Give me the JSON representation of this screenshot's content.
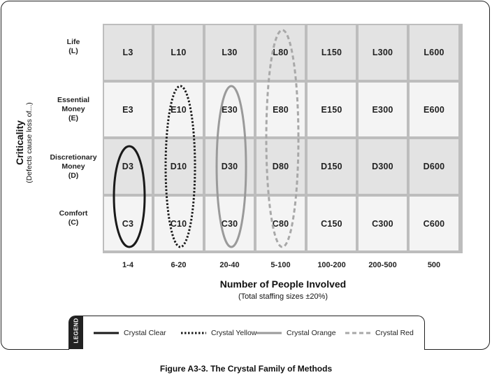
{
  "y_axis": {
    "title": "Criticality",
    "subtitle": "(Defects cause loss of...)"
  },
  "x_axis": {
    "title": "Number of People Involved",
    "subtitle": "(Total staffing sizes ±20%)"
  },
  "rows": [
    {
      "label_lines": [
        "Life",
        "(L)"
      ],
      "cells": [
        "L3",
        "L10",
        "L30",
        "L80",
        "L150",
        "L300",
        "L600"
      ]
    },
    {
      "label_lines": [
        "Essential",
        "Money",
        "(E)"
      ],
      "cells": [
        "E3",
        "E10",
        "E30",
        "E80",
        "E150",
        "E300",
        "E600"
      ]
    },
    {
      "label_lines": [
        "Discretionary",
        "Money",
        "(D)"
      ],
      "cells": [
        "D3",
        "D10",
        "D30",
        "D80",
        "D150",
        "D300",
        "D600"
      ]
    },
    {
      "label_lines": [
        "Comfort",
        "(C)"
      ],
      "cells": [
        "C3",
        "C10",
        "C30",
        "C80",
        "C150",
        "C300",
        "C600"
      ]
    }
  ],
  "columns": [
    "1-4",
    "6-20",
    "20-40",
    "5-100",
    "100-200",
    "200-500",
    "500"
  ],
  "legend": {
    "tab_label": "LEGEND",
    "items": [
      {
        "label": "Crystal Clear",
        "color": "#1a1a1a",
        "style": "solid"
      },
      {
        "label": "Crystal Yellow",
        "color": "#1a1a1a",
        "style": "dotted"
      },
      {
        "label": "Crystal Orange",
        "color": "#9a9a9a",
        "style": "solid"
      },
      {
        "label": "Crystal Red",
        "color": "#a8a8a8",
        "style": "dashed"
      }
    ]
  },
  "caption": "Figure A3-3. The Crystal Family of Methods"
}
